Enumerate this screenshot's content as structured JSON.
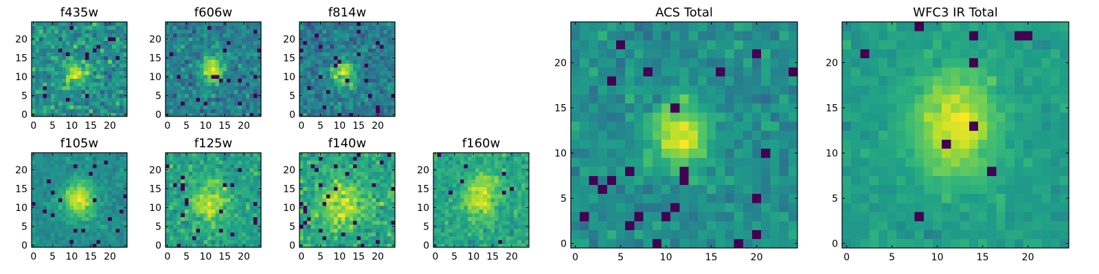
{
  "chart_data": [
    {
      "type": "heatmap",
      "title": "f435w",
      "x_ticks": [
        "0",
        "5",
        "10",
        "15",
        "20"
      ],
      "y_ticks": [
        "0",
        "5",
        "10",
        "15",
        "20"
      ],
      "xlim": [
        -0.5,
        24.5
      ],
      "ylim": [
        -0.5,
        24.5
      ],
      "grid": false,
      "colormap": "viridis",
      "values": [],
      "peak": {
        "x": 11,
        "y": 11,
        "sx": 2.0,
        "sy": 2.0,
        "amp": 0.55
      },
      "noise": 0.62,
      "base": 0.72,
      "seed": 11,
      "dark_fraction": 0.02
    },
    {
      "type": "heatmap",
      "title": "f606w",
      "x_ticks": [
        "0",
        "5",
        "10",
        "15",
        "20"
      ],
      "y_ticks": [
        "0",
        "5",
        "10",
        "15",
        "20"
      ],
      "xlim": [
        -0.5,
        24.5
      ],
      "ylim": [
        -0.5,
        24.5
      ],
      "grid": false,
      "colormap": "viridis",
      "values": [],
      "peak": {
        "x": 12,
        "y": 12,
        "sx": 2.0,
        "sy": 2.8,
        "amp": 0.75
      },
      "noise": 0.55,
      "base": 0.58,
      "seed": 23,
      "dark_fraction": 0.02
    },
    {
      "type": "heatmap",
      "title": "f814w",
      "x_ticks": [
        "0",
        "5",
        "10",
        "15",
        "20"
      ],
      "y_ticks": [
        "0",
        "5",
        "10",
        "15",
        "20"
      ],
      "xlim": [
        -0.5,
        24.5
      ],
      "ylim": [
        -0.5,
        24.5
      ],
      "grid": false,
      "colormap": "viridis",
      "values": [],
      "peak": {
        "x": 11,
        "y": 11,
        "sx": 2.0,
        "sy": 2.5,
        "amp": 0.75
      },
      "noise": 0.55,
      "base": 0.55,
      "seed": 37,
      "dark_fraction": 0.03
    },
    {
      "type": "heatmap",
      "title": "f105w",
      "x_ticks": [
        "0",
        "5",
        "10",
        "15",
        "20"
      ],
      "y_ticks": [
        "0",
        "5",
        "10",
        "15",
        "20"
      ],
      "xlim": [
        -0.5,
        24.5
      ],
      "ylim": [
        -0.5,
        24.5
      ],
      "grid": false,
      "colormap": "viridis",
      "values": [],
      "peak": {
        "x": 12,
        "y": 12,
        "sx": 3.2,
        "sy": 3.5,
        "amp": 0.55
      },
      "noise": 0.28,
      "base": 0.58,
      "seed": 41,
      "dark_fraction": 0.03
    },
    {
      "type": "heatmap",
      "title": "f125w",
      "x_ticks": [
        "0",
        "5",
        "10",
        "15",
        "20"
      ],
      "y_ticks": [
        "0",
        "5",
        "10",
        "15",
        "20"
      ],
      "xlim": [
        -0.5,
        24.5
      ],
      "ylim": [
        -0.5,
        24.5
      ],
      "grid": false,
      "colormap": "viridis",
      "values": [],
      "peak": {
        "x": 11,
        "y": 11,
        "sx": 3.5,
        "sy": 4.0,
        "amp": 0.35
      },
      "noise": 0.4,
      "base": 0.65,
      "seed": 53,
      "dark_fraction": 0.04
    },
    {
      "type": "heatmap",
      "title": "f140w",
      "x_ticks": [
        "0",
        "5",
        "10",
        "15",
        "20"
      ],
      "y_ticks": [
        "0",
        "5",
        "10",
        "15",
        "20"
      ],
      "xlim": [
        -0.5,
        24.5
      ],
      "ylim": [
        -0.5,
        24.5
      ],
      "grid": false,
      "colormap": "viridis",
      "values": [],
      "peak": {
        "x": 11,
        "y": 11,
        "sx": 3.5,
        "sy": 4.0,
        "amp": 0.35
      },
      "noise": 0.4,
      "base": 0.65,
      "seed": 67,
      "dark_fraction": 0.04
    },
    {
      "type": "heatmap",
      "title": "f160w",
      "x_ticks": [
        "0",
        "5",
        "10",
        "15",
        "20"
      ],
      "y_ticks": [
        "0",
        "5",
        "10",
        "15",
        "20"
      ],
      "xlim": [
        -0.5,
        24.5
      ],
      "ylim": [
        -0.5,
        24.5
      ],
      "grid": false,
      "colormap": "viridis",
      "values": [],
      "peak": {
        "x": 12,
        "y": 13,
        "sx": 3.0,
        "sy": 4.5,
        "amp": 0.4
      },
      "noise": 0.35,
      "base": 0.68,
      "seed": 79,
      "dark_fraction": 0.02
    },
    {
      "type": "heatmap",
      "title": "ACS Total",
      "x_ticks": [
        "0",
        "5",
        "10",
        "15",
        "20"
      ],
      "y_ticks": [
        "0",
        "5",
        "10",
        "15",
        "20"
      ],
      "xlim": [
        -0.5,
        24.5
      ],
      "ylim": [
        -0.5,
        24.5
      ],
      "grid": false,
      "colormap": "viridis",
      "values": [],
      "peak": {
        "x": 11.5,
        "y": 12,
        "sx": 2.2,
        "sy": 2.6,
        "amp": 0.6
      },
      "noise": 0.32,
      "base": 0.55,
      "seed": 97,
      "dark_fraction": 0.05
    },
    {
      "type": "heatmap",
      "title": "WFC3 IR Total",
      "x_ticks": [
        "0",
        "5",
        "10",
        "15",
        "20"
      ],
      "y_ticks": [
        "0",
        "5",
        "10",
        "15",
        "20"
      ],
      "xlim": [
        -0.5,
        24.5
      ],
      "ylim": [
        -0.5,
        24.5
      ],
      "grid": false,
      "colormap": "viridis",
      "values": [],
      "peak": {
        "x": 12,
        "y": 13,
        "sx": 3.2,
        "sy": 4.2,
        "amp": 0.45
      },
      "noise": 0.18,
      "base": 0.6,
      "seed": 113,
      "dark_fraction": 0.012
    }
  ]
}
